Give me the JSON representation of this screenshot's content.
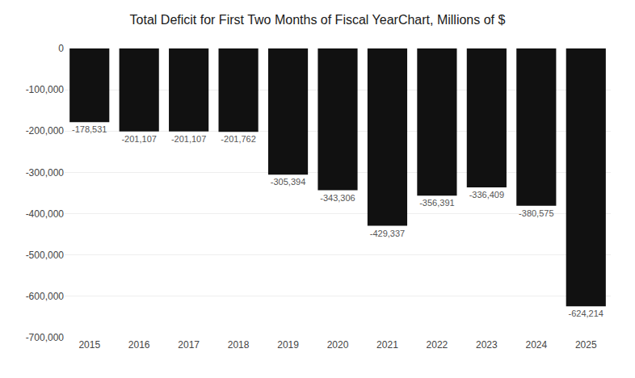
{
  "chart_data": {
    "type": "bar",
    "title": "Total Deficit for First Two Months of Fiscal YearChart, Millions of $",
    "categories": [
      "2015",
      "2016",
      "2017",
      "2018",
      "2019",
      "2020",
      "2021",
      "2022",
      "2023",
      "2024",
      "2025"
    ],
    "values": [
      -178531,
      -201107,
      -201107,
      -201762,
      -305394,
      -343306,
      -429337,
      -356391,
      -336409,
      -380575,
      -624214
    ],
    "value_labels": [
      "-178,531",
      "-201,107",
      "-201,107",
      "-201,762",
      "-305,394",
      "-343,306",
      "-429,337",
      "-356,391",
      "-336,409",
      "-380,575",
      "-624,214"
    ],
    "data_labels": true,
    "color": "#111111",
    "ylim": [
      -700000,
      0
    ],
    "yticks": [
      0,
      {
        "value": -100000,
        "label": "-100,000"
      },
      {
        "value": -200000,
        "label": "-200,000"
      },
      {
        "value": -300000,
        "label": "-300,000"
      },
      {
        "value": -400000,
        "label": "-400,000"
      },
      {
        "value": -500000,
        "label": "-500,000"
      },
      {
        "value": -600000,
        "label": "-600,000"
      },
      {
        "value": -700000,
        "label": "-700,000"
      }
    ],
    "grid": true
  }
}
